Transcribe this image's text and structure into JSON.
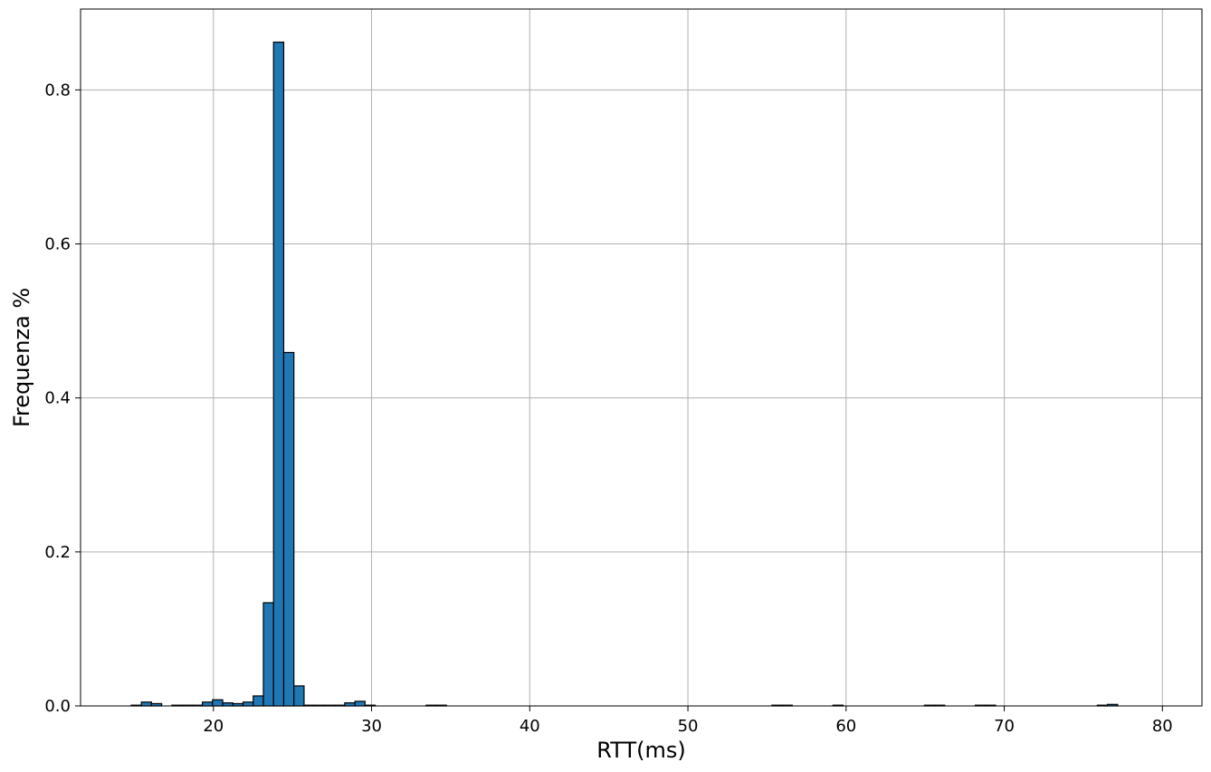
{
  "chart_data": {
    "type": "bar",
    "title": "",
    "xlabel": "RTT(ms)",
    "ylabel": "Frequenza %",
    "xlim": [
      11.6,
      82.5
    ],
    "ylim": [
      0,
      0.905
    ],
    "xticks": [
      20,
      30,
      40,
      50,
      60,
      70,
      80
    ],
    "yticks": [
      0.0,
      0.2,
      0.4,
      0.6,
      0.8
    ],
    "xtick_labels": [
      "20",
      "30",
      "40",
      "50",
      "60",
      "70",
      "80"
    ],
    "ytick_labels": [
      "0.0",
      "0.2",
      "0.4",
      "0.6",
      "0.8"
    ],
    "grid": true,
    "color": "#1f77b4",
    "edgecolor": "#000000",
    "bin_start": 14.8,
    "bin_width": 0.643,
    "values": [
      0.001,
      0.005,
      0.003,
      0.0,
      0.001,
      0.001,
      0.001,
      0.005,
      0.008,
      0.004,
      0.003,
      0.005,
      0.013,
      0.134,
      0.862,
      0.459,
      0.026,
      0.001,
      0.001,
      0.001,
      0.001,
      0.004,
      0.006,
      0.001,
      0.0,
      0.0,
      0.0,
      0.0,
      0.0,
      0.001,
      0.001,
      0.0,
      0.0,
      0.0,
      0.0,
      0.0,
      0.0,
      0.0,
      0.0,
      0.0,
      0.0,
      0.0,
      0.0,
      0.0,
      0.0,
      0.0,
      0.0,
      0.0,
      0.0,
      0.0,
      0.0,
      0.0,
      0.0,
      0.0,
      0.0,
      0.0,
      0.0,
      0.0,
      0.0,
      0.0,
      0.0,
      0.0,
      0.0,
      0.001,
      0.001,
      0.0,
      0.0,
      0.0,
      0.0,
      0.001,
      0.0,
      0.0,
      0.0,
      0.0,
      0.0,
      0.0,
      0.0,
      0.0,
      0.001,
      0.001,
      0.0,
      0.0,
      0.0,
      0.001,
      0.001,
      0.0,
      0.0,
      0.0,
      0.0,
      0.0,
      0.0,
      0.0,
      0.0,
      0.0,
      0.0,
      0.001,
      0.002
    ]
  }
}
